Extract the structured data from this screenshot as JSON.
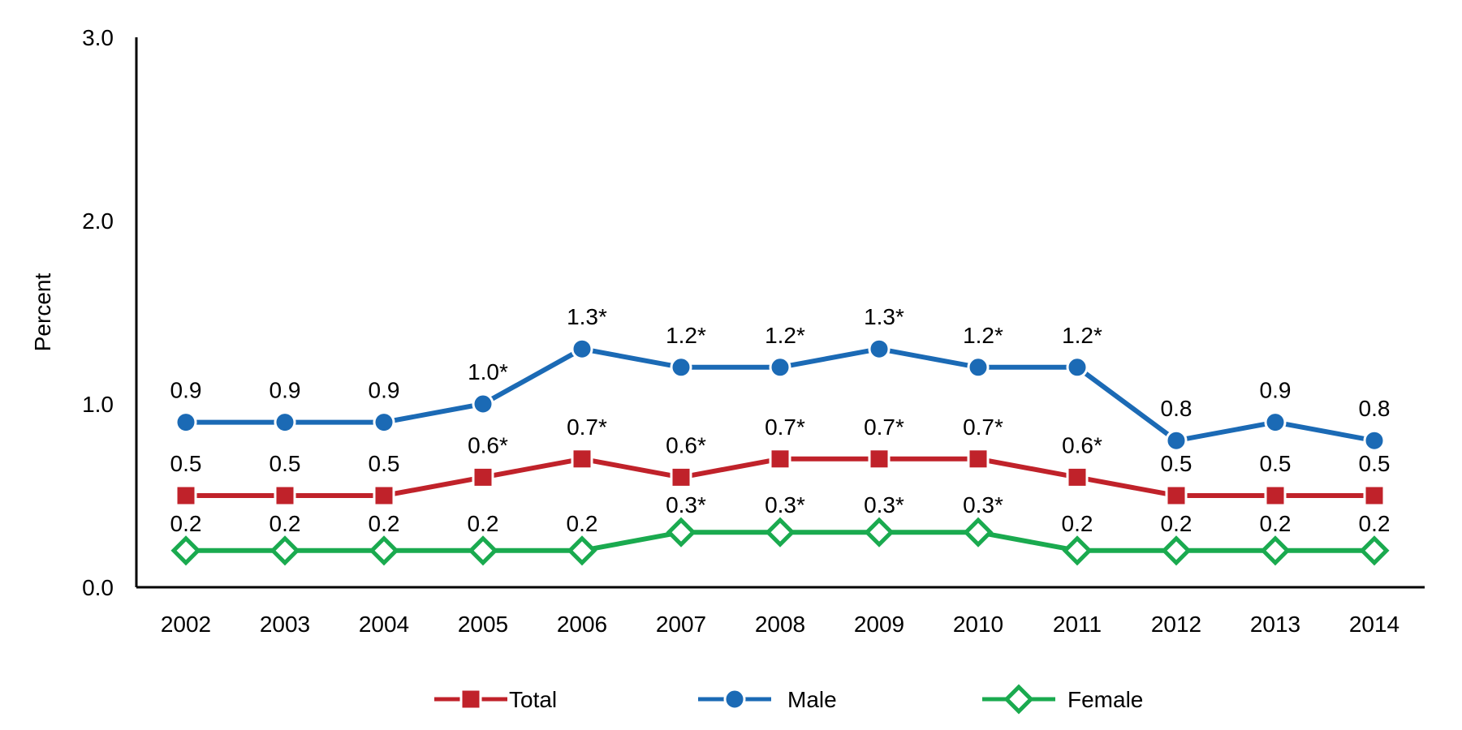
{
  "chart_data": {
    "type": "line",
    "title": "",
    "xlabel": "",
    "ylabel": "Percent",
    "ylim": [
      0,
      3
    ],
    "yticks": [
      "0.0",
      "1.0",
      "2.0",
      "3.0"
    ],
    "grid": false,
    "legend_position": "bottom",
    "categories": [
      "2002",
      "2003",
      "2004",
      "2005",
      "2006",
      "2007",
      "2008",
      "2009",
      "2010",
      "2011",
      "2012",
      "2013",
      "2014"
    ],
    "series": [
      {
        "name": "Total",
        "color": "#C0222A",
        "marker": "square",
        "values": [
          0.5,
          0.5,
          0.5,
          0.6,
          0.7,
          0.6,
          0.7,
          0.7,
          0.7,
          0.6,
          0.5,
          0.5,
          0.5
        ],
        "labels": [
          "0.5",
          "0.5",
          "0.5",
          "0.6*",
          "0.7*",
          "0.6*",
          "0.7*",
          "0.7*",
          "0.7*",
          "0.6*",
          "0.5",
          "0.5",
          "0.5"
        ]
      },
      {
        "name": "Male",
        "color": "#1B6AB5",
        "marker": "circle",
        "values": [
          0.9,
          0.9,
          0.9,
          1.0,
          1.3,
          1.2,
          1.2,
          1.3,
          1.2,
          1.2,
          0.8,
          0.9,
          0.8
        ],
        "labels": [
          "0.9",
          "0.9",
          "0.9",
          "1.0*",
          "1.3*",
          "1.2*",
          "1.2*",
          "1.3*",
          "1.2*",
          "1.2*",
          "0.8",
          "0.9",
          "0.8"
        ]
      },
      {
        "name": "Female",
        "color": "#1AAA4F",
        "marker": "diamond-open",
        "values": [
          0.2,
          0.2,
          0.2,
          0.2,
          0.2,
          0.3,
          0.3,
          0.3,
          0.3,
          0.2,
          0.2,
          0.2,
          0.2
        ],
        "labels": [
          "0.2",
          "0.2",
          "0.2",
          "0.2",
          "0.2",
          "0.3*",
          "0.3*",
          "0.3*",
          "0.3*",
          "0.2",
          "0.2",
          "0.2",
          "0.2"
        ]
      }
    ]
  }
}
